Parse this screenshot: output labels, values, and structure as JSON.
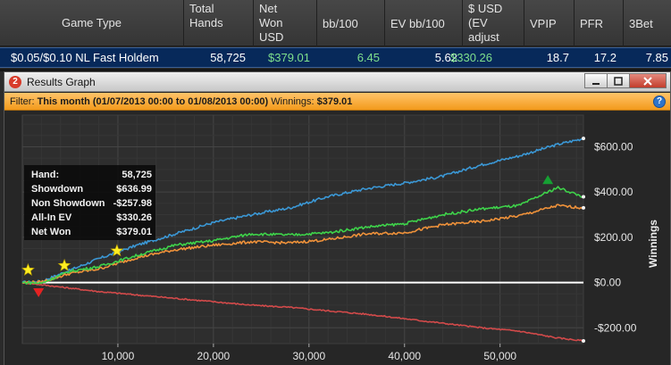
{
  "table": {
    "headers": [
      {
        "key": "game_type",
        "label": "Game Type"
      },
      {
        "key": "total_hands",
        "label": "Total\nHands"
      },
      {
        "key": "net_won",
        "label": "Net\nWon\nUSD"
      },
      {
        "key": "bb100",
        "label": "bb/100"
      },
      {
        "key": "ev_bb100",
        "label": "EV bb/100"
      },
      {
        "key": "usd_ev",
        "label": "$ USD\n(EV\nadjust"
      },
      {
        "key": "vpip",
        "label": "VPIP"
      },
      {
        "key": "pfr",
        "label": "PFR"
      },
      {
        "key": "threebet",
        "label": "3Bet"
      }
    ],
    "row": {
      "game_type": "$0.05/$0.10 NL Fast Holdem",
      "total_hands": "58,725",
      "net_won": "$379.01",
      "bb100": "6.45",
      "ev_bb100": "5.62",
      "usd_ev": "$330.26",
      "vpip": "18.7",
      "pfr": "17.2",
      "threebet": "7.85"
    }
  },
  "window": {
    "badge": "2",
    "title": "Results Graph",
    "min_icon": "minimize-icon",
    "max_icon": "maximize-icon",
    "close_icon": "close-icon"
  },
  "filter": {
    "prefix": "Filter:",
    "value": "This month (01/07/2013 00:00 to 01/08/2013 00:00)",
    "winnings_label": "Winnings:",
    "winnings_value": "$379.01",
    "help_icon": "help-icon"
  },
  "legend": [
    {
      "label": "Hand:",
      "value": "58,725"
    },
    {
      "label": "Showdown",
      "value": "$636.99"
    },
    {
      "label": "Non Showdown",
      "value": "-$257.98"
    },
    {
      "label": "All-In EV",
      "value": "$330.26"
    },
    {
      "label": "Net Won",
      "value": "$379.01"
    }
  ],
  "chart_data": {
    "type": "line",
    "ylabel": "Winnings",
    "xlim": [
      0,
      58725
    ],
    "ylim": [
      -270,
      740
    ],
    "x_ticks": [
      10000,
      20000,
      30000,
      40000,
      50000
    ],
    "x_tick_labels": [
      "10,000",
      "20,000",
      "30,000",
      "40,000",
      "50,000"
    ],
    "y_ticks": [
      600,
      400,
      200,
      0,
      -200
    ],
    "y_tick_labels": [
      "$600.00",
      "$400.00",
      "$200.00",
      "$0.00",
      "-$200.00"
    ],
    "grid": true,
    "colors": {
      "showdown": "#3b98d6",
      "non_showdown": "#d24a4a",
      "allin_ev": "#f0923a",
      "net_won": "#3ed24a",
      "zero_line": "#ffffff"
    },
    "series": [
      {
        "key": "showdown",
        "x": [
          0,
          2000,
          5000,
          8000,
          12000,
          16000,
          20000,
          24000,
          28000,
          32000,
          36000,
          40000,
          44000,
          48000,
          52000,
          56000,
          58725
        ],
        "values": [
          0,
          5,
          55,
          105,
          165,
          215,
          265,
          300,
          330,
          380,
          415,
          440,
          470,
          520,
          560,
          610,
          637
        ]
      },
      {
        "key": "non_showdown",
        "x": [
          0,
          2000,
          5000,
          8000,
          12000,
          16000,
          20000,
          24000,
          28000,
          32000,
          36000,
          40000,
          44000,
          48000,
          52000,
          56000,
          58725
        ],
        "values": [
          0,
          -10,
          -25,
          -40,
          -55,
          -70,
          -85,
          -100,
          -110,
          -125,
          -140,
          -160,
          -180,
          -200,
          -215,
          -245,
          -258
        ]
      },
      {
        "key": "allin_ev",
        "x": [
          0,
          2000,
          5000,
          8000,
          12000,
          16000,
          20000,
          24000,
          28000,
          32000,
          36000,
          40000,
          44000,
          48000,
          52000,
          56000,
          58725
        ],
        "values": [
          0,
          2,
          40,
          60,
          110,
          145,
          165,
          180,
          175,
          190,
          215,
          220,
          255,
          270,
          295,
          340,
          330
        ]
      },
      {
        "key": "net_won",
        "x": [
          0,
          2000,
          5000,
          8000,
          12000,
          16000,
          20000,
          24000,
          28000,
          32000,
          36000,
          40000,
          44000,
          48000,
          52000,
          56000,
          58725
        ],
        "values": [
          0,
          -3,
          50,
          70,
          120,
          165,
          185,
          215,
          210,
          220,
          245,
          260,
          300,
          325,
          340,
          420,
          379
        ]
      }
    ],
    "markers": [
      {
        "type": "star",
        "x": 600,
        "y": 55,
        "color": "#ffee22"
      },
      {
        "type": "star",
        "x": 4400,
        "y": 75,
        "color": "#ffee22"
      },
      {
        "type": "star",
        "x": 9900,
        "y": 140,
        "color": "#ffee22"
      },
      {
        "type": "triangle-down",
        "x": 1700,
        "y": -45,
        "color": "#e52222"
      },
      {
        "type": "triangle-up",
        "x": 55000,
        "y": 455,
        "color": "#16a033"
      }
    ]
  }
}
